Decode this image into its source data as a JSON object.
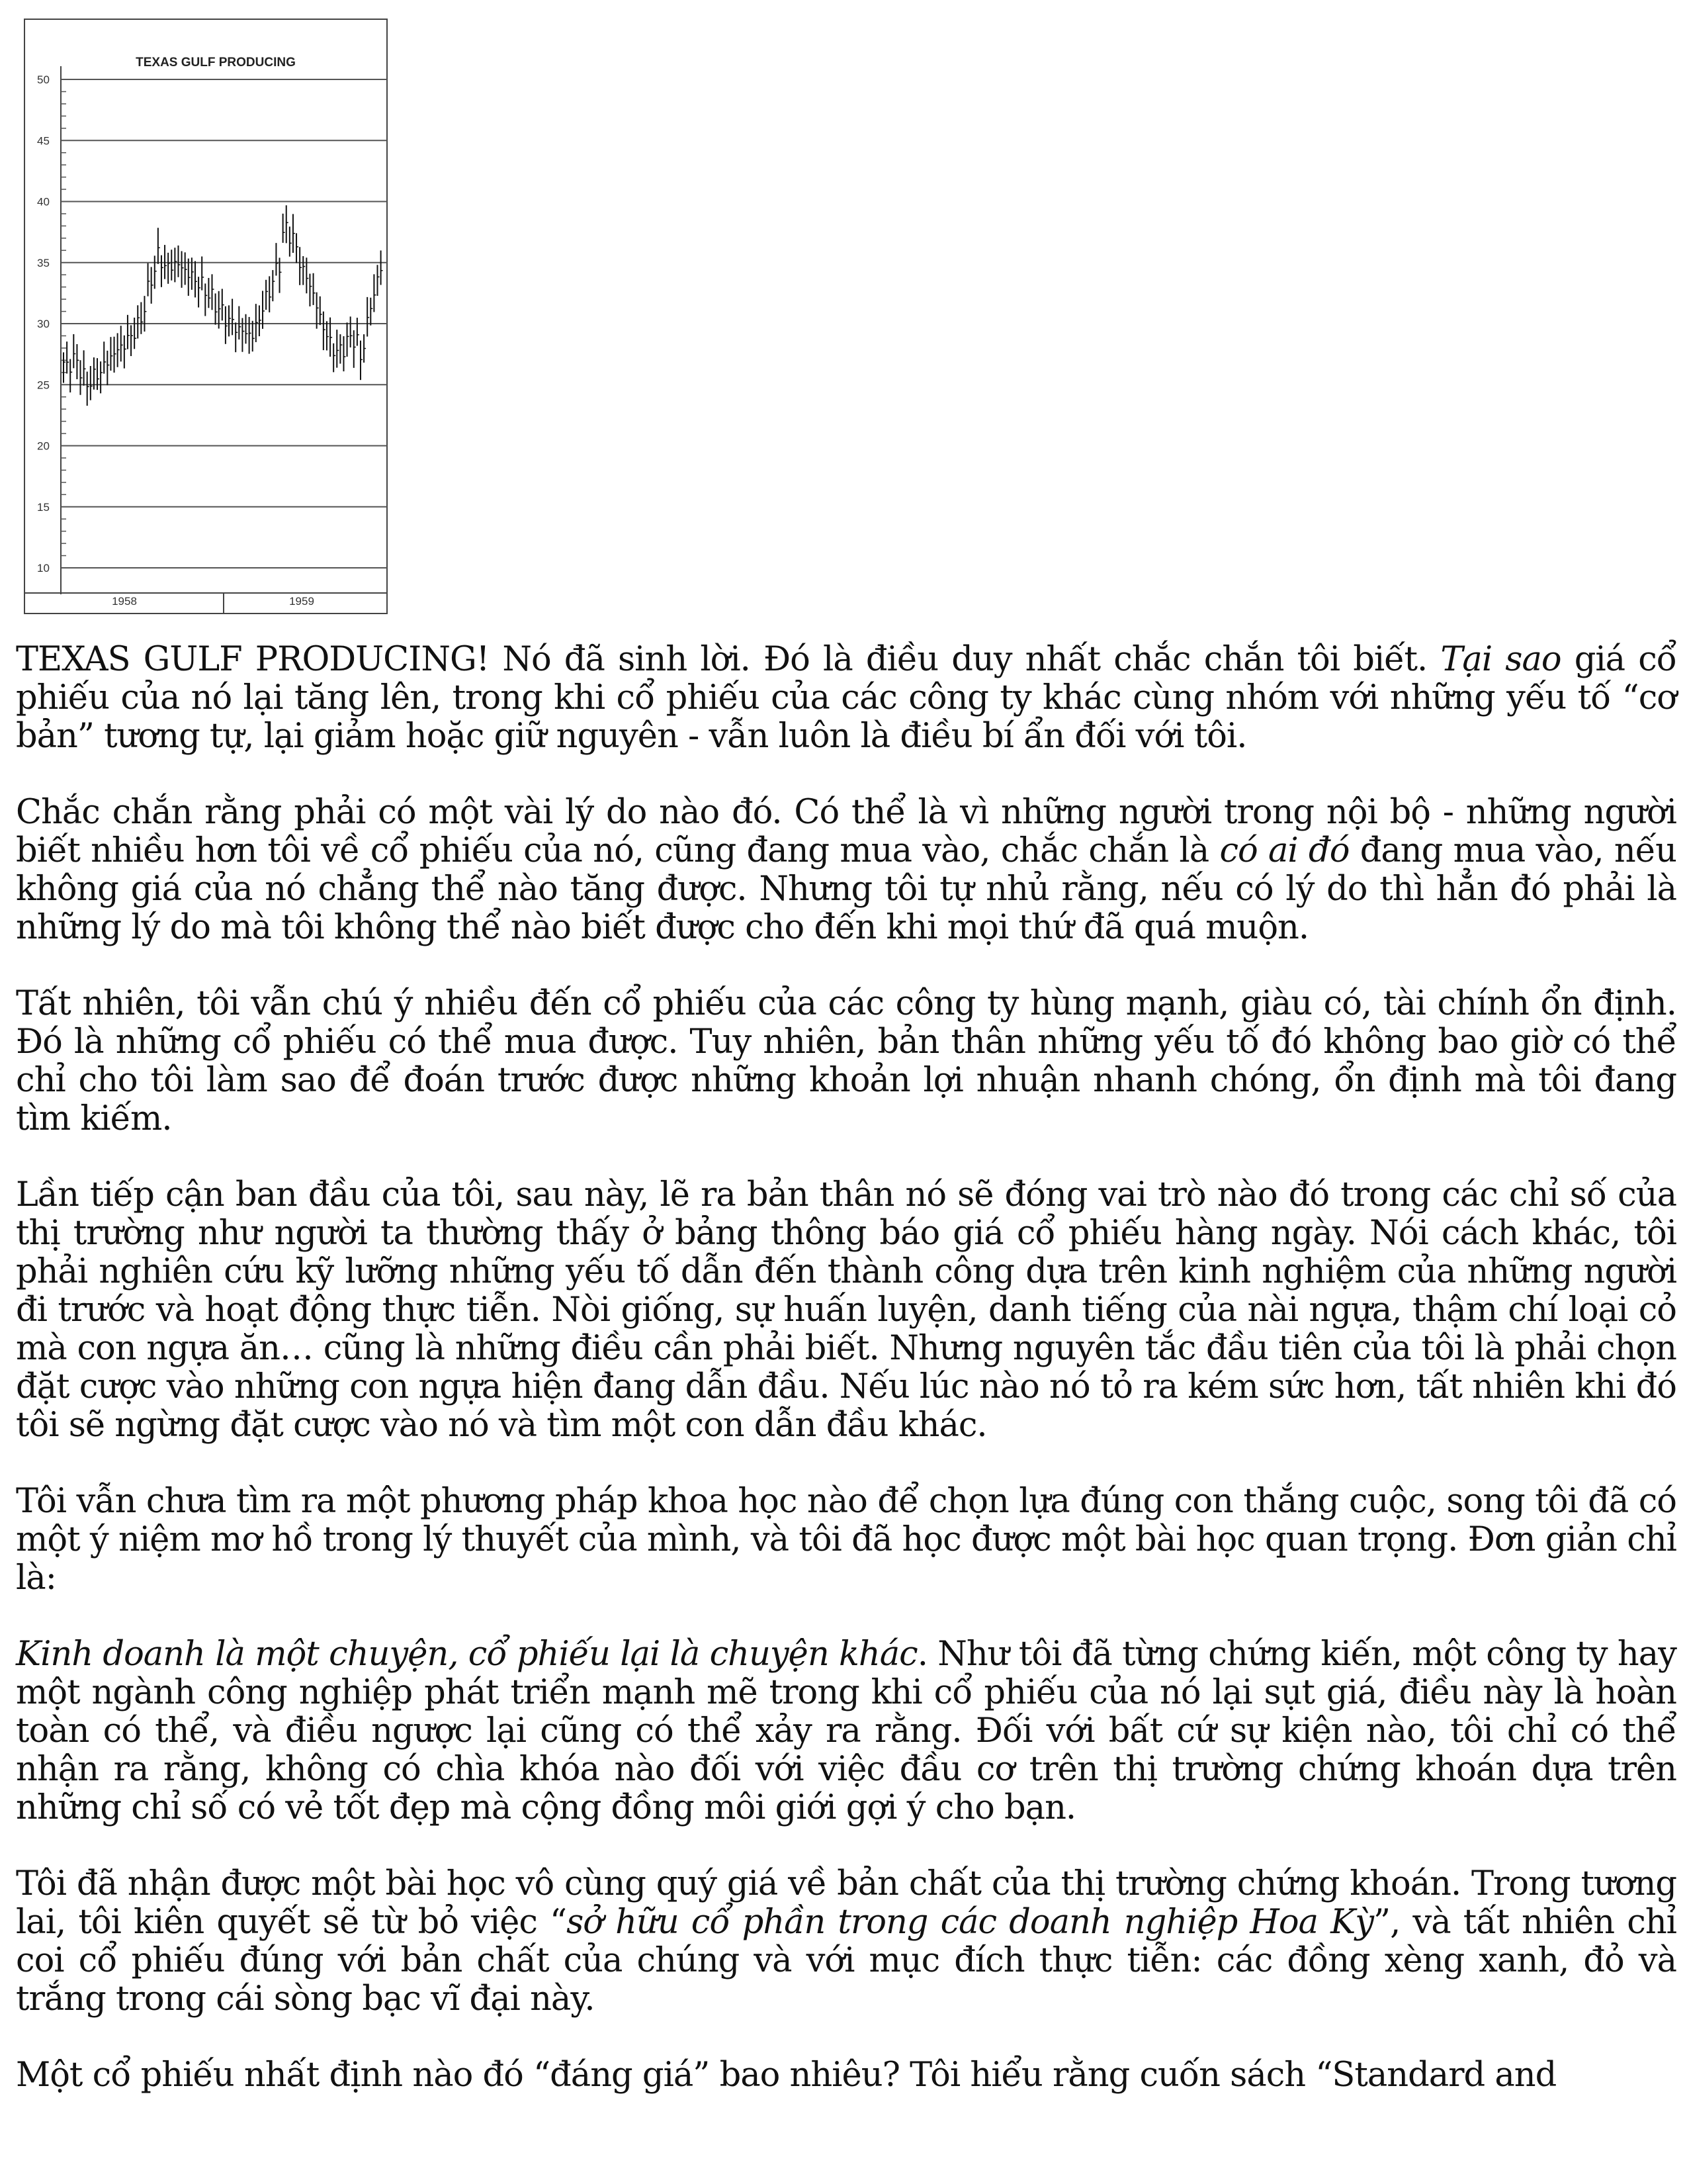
{
  "figure": {
    "chart_data": {
      "type": "line",
      "title": "TEXAS GULF PRODUCING",
      "y_ticks": [
        10,
        15,
        20,
        25,
        30,
        35,
        40,
        45,
        50
      ],
      "x_ticks": [
        "1958",
        "1959"
      ],
      "ylim": [
        10,
        50
      ],
      "grid": "horizontal",
      "series": [
        {
          "values": [
            [
              0,
              26.5
            ],
            [
              3,
              27
            ],
            [
              5,
              25
            ],
            [
              8,
              26
            ],
            [
              11,
              27.5
            ],
            [
              14,
              28.5
            ],
            [
              17,
              30
            ],
            [
              19,
              33
            ],
            [
              21,
              35.5
            ],
            [
              23,
              34.5
            ],
            [
              25,
              35
            ],
            [
              28,
              34
            ],
            [
              31,
              33
            ],
            [
              33,
              32
            ],
            [
              36,
              30.5
            ],
            [
              39,
              29.5
            ],
            [
              42,
              29
            ],
            [
              44,
              31
            ],
            [
              46,
              33
            ],
            [
              48,
              35
            ],
            [
              49,
              38
            ],
            [
              51,
              37
            ],
            [
              53,
              34.5
            ],
            [
              55,
              33
            ],
            [
              57,
              30.5
            ],
            [
              59,
              28.5
            ],
            [
              61,
              27.5
            ],
            [
              63,
              28.5
            ],
            [
              65,
              29
            ],
            [
              66,
              27
            ],
            [
              68,
              31
            ],
            [
              70,
              34
            ],
            [
              71,
              35
            ]
          ]
        }
      ]
    }
  },
  "paragraphs": [
    [
      {
        "t": "TEXAS GULF PRODUCING! Nó đã sinh lời. Đó là điều duy nhất chắc chắn tôi biết. "
      },
      {
        "t": "Tại sao",
        "i": true
      },
      {
        "t": " giá cổ phiếu của nó lại tăng lên, trong khi cổ phiếu của các công ty khác cùng nhóm với những yếu tố “cơ bản” tương tự, lại giảm hoặc giữ nguyên - vẫn luôn là điều bí ẩn đối với tôi."
      }
    ],
    [
      {
        "t": "Chắc chắn rằng phải có một vài lý do nào đó. Có thể là vì những người trong nội bộ - những người biết nhiều hơn tôi về cổ phiếu của nó, cũng đang mua vào, chắc chắn là "
      },
      {
        "t": "có ai đó",
        "i": true
      },
      {
        "t": " đang mua vào, nếu không giá của nó chẳng thể nào tăng được. Nhưng tôi tự nhủ rằng, nếu có lý do thì hẳn đó phải là những lý do mà tôi không thể nào biết được cho đến khi mọi thứ đã quá muộn."
      }
    ],
    [
      {
        "t": "Tất nhiên, tôi vẫn chú ý nhiều đến cổ phiếu của các công ty hùng mạnh, giàu có, tài chính ổn định. Đó là những cổ phiếu có thể mua được. Tuy nhiên, bản thân những yếu tố đó không bao giờ có thể chỉ cho tôi làm sao để đoán trước được những khoản lợi nhuận nhanh chóng, ổn định mà tôi đang tìm kiếm."
      }
    ],
    [
      {
        "t": "Lần tiếp cận ban đầu của tôi, sau này, lẽ ra bản thân nó sẽ đóng vai trò nào đó trong các chỉ số của thị trường như người ta thường thấy ở bảng thông báo giá cổ phiếu hàng ngày. Nói cách khác, tôi phải nghiên cứu kỹ lưỡng những yếu tố dẫn đến thành công dựa trên kinh nghiệm của những người đi trước và hoạt động thực tiễn. Nòi giống, sự huấn luyện, danh tiếng của nài ngựa, thậm chí loại cỏ mà con ngựa ăn… cũng là những điều cần phải biết. Nhưng nguyên tắc đầu tiên của tôi là phải chọn đặt cược vào những con ngựa hiện đang dẫn đầu. Nếu lúc nào nó tỏ ra kém sức hơn, tất nhiên khi đó tôi sẽ ngừng đặt cược vào nó và tìm một con dẫn đầu khác."
      }
    ],
    [
      {
        "t": "Tôi vẫn chưa tìm ra một phương pháp khoa học nào để chọn lựa đúng con thắng cuộc, song tôi đã có một ý niệm mơ hồ trong lý thuyết của mình, và tôi đã học được một bài học quan trọng. Đơn giản chỉ là:"
      }
    ],
    [
      {
        "t": "Kinh doanh là một chuyện, cổ phiếu lại là chuyện khác",
        "i": true
      },
      {
        "t": ". Như tôi đã từng chứng kiến, một công ty hay một ngành công nghiệp phát triển mạnh mẽ trong khi cổ phiếu của nó lại sụt giá, điều này là hoàn toàn có thể, và điều ngược lại cũng có thể xảy ra rằng. Đối với bất cứ sự kiện nào, tôi chỉ có thể nhận ra rằng, không có chìa khóa nào đối với việc đầu cơ trên thị trường chứng khoán dựa trên những chỉ số có vẻ tốt đẹp mà cộng đồng môi giới gợi ý cho bạn."
      }
    ],
    [
      {
        "t": "Tôi đã nhận được một bài học vô cùng quý giá về bản chất của thị trường chứng khoán. Trong tương lai, tôi kiên quyết sẽ từ bỏ việc “"
      },
      {
        "t": "sở hữu cổ phần trong các doanh nghiệp Hoa Kỳ",
        "i": true
      },
      {
        "t": "”, và tất nhiên chỉ coi cổ phiếu đúng với bản chất của chúng và với mục đích thực tiễn: các đồng xèng xanh, đỏ và trắng trong cái sòng bạc vĩ đại này."
      }
    ],
    [
      {
        "t": "Một cổ phiếu nhất định nào đó “đáng giá” bao nhiêu? Tôi hiểu rằng cuốn sách “Standard and"
      }
    ]
  ]
}
